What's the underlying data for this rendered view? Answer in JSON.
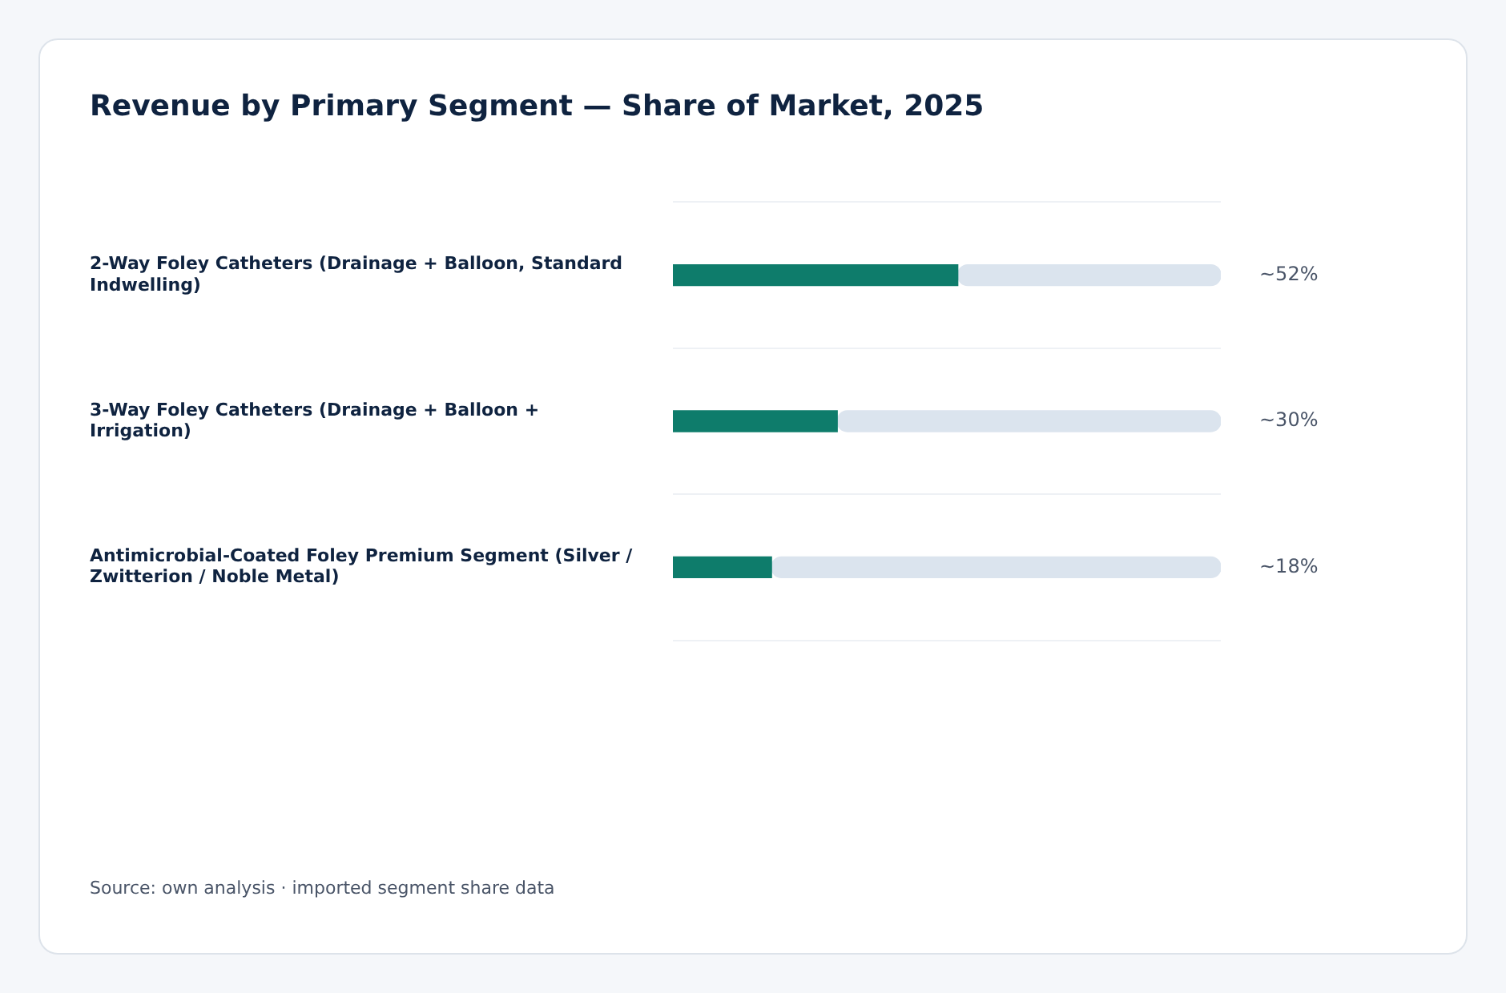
{
  "chart_data": {
    "type": "bar",
    "title": "Revenue by Primary Segment — Share of Market, 2025",
    "categories": [
      "2-Way Foley Catheters (Drainage + Balloon, Standard Indwelling)",
      "3-Way Foley Catheters (Drainage + Balloon + Irrigation)",
      "Antimicrobial-Coated Foley Premium Segment (Silver / Zwitterion / Noble Metal)"
    ],
    "series": [
      {
        "color": "#0e7c6b",
        "values": [
          52,
          30,
          18
        ],
        "value_labels": [
          "~52%",
          "~30%",
          "~18%"
        ]
      },
      {
        "color": "#dbe4ee",
        "values": [
          48,
          70,
          82
        ]
      }
    ],
    "stacked": true,
    "orientation": "horizontal",
    "xlim": [
      0,
      100
    ],
    "tick_labels": "y",
    "grid": "y",
    "legend": false,
    "annotations": [
      "Source: own analysis · imported segment share data"
    ]
  }
}
